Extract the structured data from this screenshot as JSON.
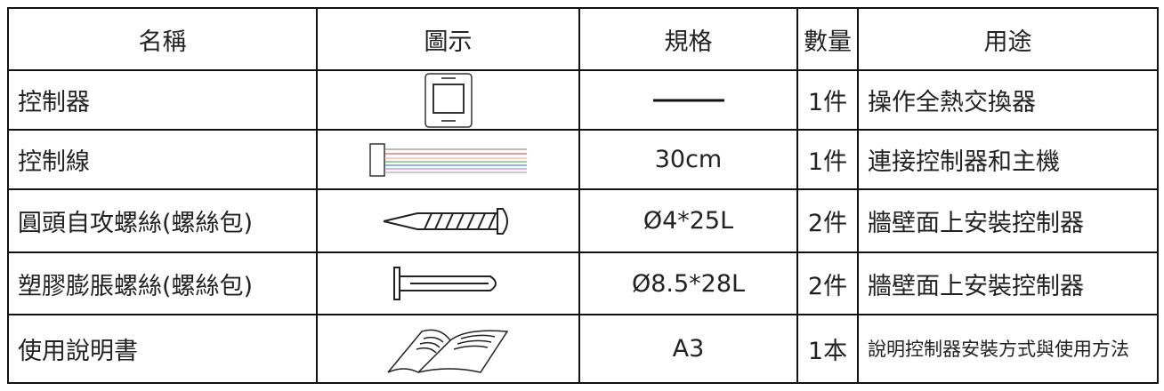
{
  "table": {
    "header": [
      "名稱",
      "圖示",
      "規格",
      "數量",
      "用途"
    ],
    "rows": [
      {
        "name": "控制器",
        "quantity": "1件",
        "usage": "操作全熱交換器"
      },
      {
        "name": "控制線",
        "spec": "30cm",
        "quantity": "1件",
        "usage": "連接控制器和主機"
      },
      {
        "name": "圓頭自攻螺絲(螺絲包)",
        "spec": "Ø4*25L",
        "quantity": "2件",
        "usage": "牆壁面上安裝控制器"
      },
      {
        "name": "塑膠膨脹螺絲(螺絲包)",
        "spec": "Ø8.5*28L",
        "quantity": "2件",
        "usage": "牆壁面上安裝控制器"
      },
      {
        "name": "使用說明書",
        "spec": "A3",
        "quantity": "1本",
        "usage": "說明控制器安裝方式與使用方法"
      }
    ]
  }
}
